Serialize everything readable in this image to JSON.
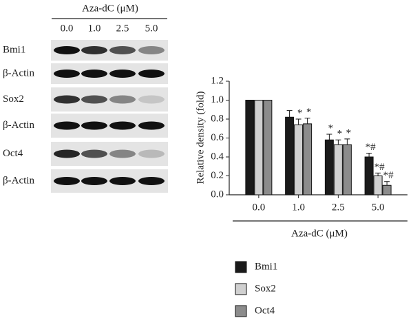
{
  "blot": {
    "title": "Aza-dC (μM)",
    "lanes": [
      "0.0",
      "1.0",
      "2.5",
      "5.0"
    ],
    "rows": [
      "Bmi1",
      "β-Actin",
      "Sox2",
      "β-Actin",
      "Oct4",
      "β-Actin"
    ]
  },
  "chart_data": {
    "type": "bar",
    "xlabel": "Aza-dC (μM)",
    "ylabel": "Relative density (fold)",
    "categories": [
      "0.0",
      "1.0",
      "2.5",
      "5.0"
    ],
    "series": [
      {
        "name": "Bmi1",
        "color": "#1a1a1a",
        "values": [
          1.0,
          0.82,
          0.58,
          0.4
        ],
        "errors": [
          0,
          0.07,
          0.06,
          0.04
        ],
        "annotations": [
          null,
          null,
          "*",
          "*#"
        ]
      },
      {
        "name": "Sox2",
        "color": "#d0d0d0",
        "values": [
          1.0,
          0.74,
          0.53,
          0.2
        ],
        "errors": [
          0,
          0.06,
          0.05,
          0.03
        ],
        "annotations": [
          null,
          "*",
          "*",
          "*#"
        ]
      },
      {
        "name": "Oct4",
        "color": "#8c8c8c",
        "values": [
          1.0,
          0.75,
          0.53,
          0.1
        ],
        "errors": [
          0,
          0.06,
          0.06,
          0.04
        ],
        "annotations": [
          null,
          "*",
          "*",
          "*#"
        ]
      }
    ],
    "ylim": [
      0,
      1.2
    ],
    "yticks": [
      {
        "value": 0,
        "label": "0.0"
      },
      0.2,
      0.4,
      0.6,
      0.8,
      {
        "value": 1,
        "label": "1.0"
      },
      1.2
    ]
  }
}
